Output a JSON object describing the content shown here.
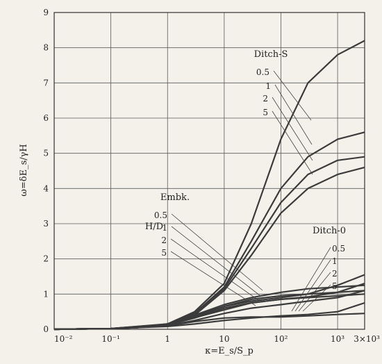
{
  "chart_data": {
    "type": "line",
    "xscale": "log",
    "xlim": [
      0.01,
      3000
    ],
    "ylim": [
      0,
      9
    ],
    "grid": true,
    "xlabel": "κ=E_s/S_p",
    "ylabel": "ω=δE_s/γH",
    "xticks": [
      {
        "value": 0.01,
        "label": "10⁻²"
      },
      {
        "value": 0.1,
        "label": "10⁻¹"
      },
      {
        "value": 1,
        "label": "1"
      },
      {
        "value": 10,
        "label": "10"
      },
      {
        "value": 100,
        "label": "10²"
      },
      {
        "value": 1000,
        "label": "10³"
      },
      {
        "value": 3000,
        "label": "3×10³"
      }
    ],
    "yticks": [
      0,
      1,
      2,
      3,
      4,
      5,
      6,
      7,
      8,
      9
    ],
    "groups": [
      {
        "label": "Ditch-S",
        "hd_labels": [
          "0.5",
          "1",
          "2",
          "5"
        ],
        "series": [
          {
            "hd": "0.5",
            "points": [
              [
                0.01,
                0
              ],
              [
                0.1,
                0.02
              ],
              [
                0.3,
                0.05
              ],
              [
                1,
                0.15
              ],
              [
                3,
                0.5
              ],
              [
                10,
                1.3
              ],
              [
                30,
                3.0
              ],
              [
                100,
                5.4
              ],
              [
                300,
                7.0
              ],
              [
                1000,
                7.8
              ],
              [
                3000,
                8.2
              ]
            ]
          },
          {
            "hd": "1",
            "points": [
              [
                0.01,
                0
              ],
              [
                0.1,
                0.02
              ],
              [
                0.3,
                0.05
              ],
              [
                1,
                0.15
              ],
              [
                3,
                0.45
              ],
              [
                10,
                1.2
              ],
              [
                30,
                2.5
              ],
              [
                100,
                4.0
              ],
              [
                300,
                4.9
              ],
              [
                1000,
                5.4
              ],
              [
                3000,
                5.6
              ]
            ]
          },
          {
            "hd": "2",
            "points": [
              [
                0.01,
                0
              ],
              [
                0.1,
                0.02
              ],
              [
                0.3,
                0.05
              ],
              [
                1,
                0.15
              ],
              [
                3,
                0.45
              ],
              [
                10,
                1.15
              ],
              [
                30,
                2.3
              ],
              [
                100,
                3.6
              ],
              [
                300,
                4.4
              ],
              [
                1000,
                4.8
              ],
              [
                3000,
                4.9
              ]
            ]
          },
          {
            "hd": "5",
            "points": [
              [
                0.01,
                0
              ],
              [
                0.1,
                0.02
              ],
              [
                0.3,
                0.05
              ],
              [
                1,
                0.15
              ],
              [
                3,
                0.4
              ],
              [
                10,
                1.1
              ],
              [
                30,
                2.1
              ],
              [
                100,
                3.3
              ],
              [
                300,
                4.0
              ],
              [
                1000,
                4.4
              ],
              [
                3000,
                4.6
              ]
            ]
          }
        ]
      },
      {
        "label": "Embk.",
        "axis_label": "H/D",
        "hd_labels": [
          "0.5",
          "1",
          "2",
          "5"
        ],
        "series": [
          {
            "hd": "0.5",
            "points": [
              [
                0.01,
                0
              ],
              [
                0.1,
                0.02
              ],
              [
                1,
                0.15
              ],
              [
                3,
                0.4
              ],
              [
                10,
                0.7
              ],
              [
                30,
                0.9
              ],
              [
                100,
                1.05
              ],
              [
                300,
                1.15
              ],
              [
                1000,
                1.2
              ],
              [
                3000,
                1.25
              ]
            ]
          },
          {
            "hd": "1",
            "points": [
              [
                0.01,
                0
              ],
              [
                0.1,
                0.02
              ],
              [
                1,
                0.14
              ],
              [
                3,
                0.38
              ],
              [
                10,
                0.65
              ],
              [
                30,
                0.85
              ],
              [
                100,
                0.95
              ],
              [
                300,
                1.0
              ],
              [
                1000,
                1.05
              ],
              [
                3000,
                1.1
              ]
            ]
          },
          {
            "hd": "2",
            "points": [
              [
                0.01,
                0
              ],
              [
                0.1,
                0.02
              ],
              [
                1,
                0.13
              ],
              [
                3,
                0.33
              ],
              [
                10,
                0.55
              ],
              [
                30,
                0.75
              ],
              [
                100,
                0.85
              ],
              [
                300,
                0.9
              ],
              [
                1000,
                0.95
              ],
              [
                3000,
                1.0
              ]
            ]
          },
          {
            "hd": "5",
            "points": [
              [
                0.01,
                0
              ],
              [
                0.1,
                0.02
              ],
              [
                1,
                0.1
              ],
              [
                3,
                0.22
              ],
              [
                10,
                0.32
              ],
              [
                30,
                0.35
              ],
              [
                100,
                0.35
              ],
              [
                300,
                0.38
              ],
              [
                1000,
                0.42
              ],
              [
                3000,
                0.45
              ]
            ]
          }
        ]
      },
      {
        "label": "Ditch-0",
        "hd_labels": [
          "0.5",
          "1",
          "2",
          "5"
        ],
        "series": [
          {
            "hd": "0.5",
            "points": [
              [
                0.01,
                0
              ],
              [
                0.1,
                0.02
              ],
              [
                1,
                0.13
              ],
              [
                3,
                0.35
              ],
              [
                10,
                0.65
              ],
              [
                30,
                0.8
              ],
              [
                100,
                0.9
              ],
              [
                300,
                1.0
              ],
              [
                1000,
                1.25
              ],
              [
                3000,
                1.55
              ]
            ]
          },
          {
            "hd": "1",
            "points": [
              [
                0.01,
                0
              ],
              [
                0.1,
                0.02
              ],
              [
                1,
                0.12
              ],
              [
                3,
                0.32
              ],
              [
                10,
                0.6
              ],
              [
                30,
                0.75
              ],
              [
                100,
                0.85
              ],
              [
                300,
                0.92
              ],
              [
                1000,
                1.05
              ],
              [
                3000,
                1.3
              ]
            ]
          },
          {
            "hd": "2",
            "points": [
              [
                0.01,
                0
              ],
              [
                0.1,
                0.02
              ],
              [
                1,
                0.1
              ],
              [
                3,
                0.25
              ],
              [
                10,
                0.45
              ],
              [
                30,
                0.6
              ],
              [
                100,
                0.7
              ],
              [
                300,
                0.8
              ],
              [
                1000,
                0.9
              ],
              [
                3000,
                1.1
              ]
            ]
          },
          {
            "hd": "5",
            "points": [
              [
                0.01,
                0
              ],
              [
                0.1,
                0.02
              ],
              [
                1,
                0.08
              ],
              [
                3,
                0.15
              ],
              [
                10,
                0.25
              ],
              [
                30,
                0.32
              ],
              [
                100,
                0.38
              ],
              [
                300,
                0.42
              ],
              [
                1000,
                0.5
              ],
              [
                3000,
                0.75
              ]
            ]
          }
        ]
      }
    ],
    "colors": {
      "curve": "#3b3b3b",
      "grid": "#5a5a5a",
      "background": "#f3f1ea"
    }
  }
}
